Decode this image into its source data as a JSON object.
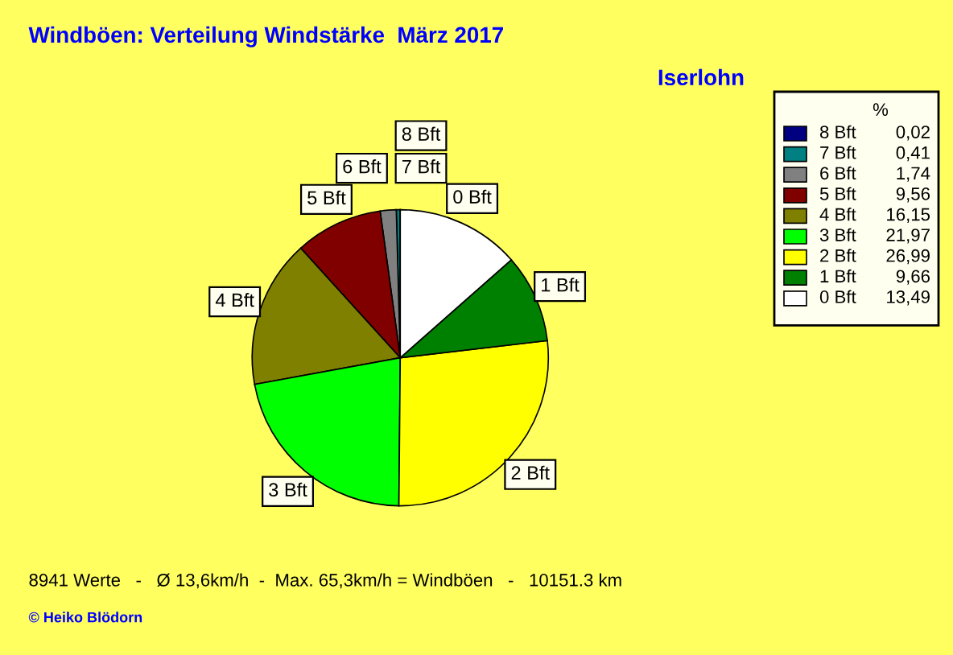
{
  "chart_data": {
    "type": "pie",
    "title": "Windböen: Verteilung Windstärke  März 2017",
    "subtitle": "Iserlohn",
    "legend_title": "%",
    "categories": [
      "8 Bft",
      "7 Bft",
      "6 Bft",
      "5 Bft",
      "4 Bft",
      "3 Bft",
      "2 Bft",
      "1 Bft",
      "0 Bft"
    ],
    "values": [
      0.02,
      0.41,
      1.74,
      9.56,
      16.15,
      21.97,
      26.99,
      9.66,
      13.49
    ],
    "value_labels": [
      "0,02",
      "0,41",
      "1,74",
      "9,56",
      "16,15",
      "21,97",
      "26,99",
      "9,66",
      "13,49"
    ],
    "colors": [
      "#000080",
      "#008080",
      "#808080",
      "#800000",
      "#808000",
      "#00ff00",
      "#ffff00",
      "#008000",
      "#ffffff"
    ],
    "legend": "top right",
    "annotations": [
      "8941 Werte   -   Ø 13,6km/h  -  Max. 65,3km/h = Windböen   -   10151.3 km",
      "© Heiko Blödorn"
    ]
  }
}
